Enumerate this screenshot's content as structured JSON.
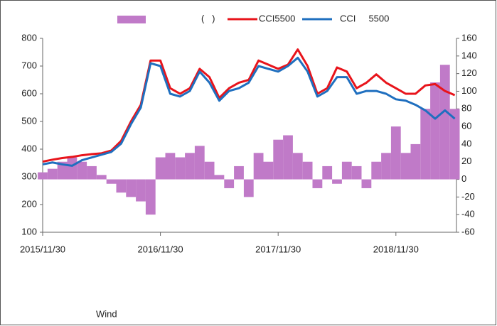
{
  "chart_data": {
    "type": "bar-line",
    "categories": [
      "2015/11/30",
      null,
      null,
      null,
      null,
      null,
      null,
      null,
      null,
      null,
      null,
      null,
      "2016/11/30",
      null,
      null,
      null,
      null,
      null,
      null,
      null,
      null,
      null,
      null,
      null,
      "2017/11/30",
      null,
      null,
      null,
      null,
      null,
      null,
      null,
      null,
      null,
      null,
      null,
      "2018/11/30",
      null,
      null,
      null,
      null,
      null,
      null
    ],
    "series": [
      {
        "name": "(   )",
        "color": "#c07ac8",
        "kind": "bar",
        "axis": "y2",
        "values": [
          8,
          12,
          20,
          25,
          20,
          15,
          5,
          -5,
          -15,
          -20,
          -25,
          -40,
          25,
          30,
          25,
          30,
          38,
          20,
          5,
          -10,
          15,
          -20,
          30,
          20,
          45,
          50,
          30,
          20,
          -10,
          15,
          -5,
          20,
          15,
          -10,
          20,
          30,
          60,
          30,
          40,
          80,
          110,
          130,
          80
        ]
      },
      {
        "name": "CCI5500",
        "color": "#e8141b",
        "kind": "line",
        "values": [
          355,
          362,
          368,
          372,
          378,
          382,
          385,
          395,
          430,
          500,
          560,
          720,
          720,
          620,
          600,
          620,
          690,
          660,
          585,
          620,
          640,
          650,
          720,
          705,
          690,
          705,
          760,
          700,
          600,
          620,
          695,
          680,
          620,
          640,
          670,
          640,
          620,
          600,
          600,
          630,
          635,
          610,
          595
        ]
      },
      {
        "name": "CCI     5500",
        "color": "#1f6fbf",
        "kind": "line",
        "values": [
          345,
          352,
          345,
          340,
          360,
          370,
          380,
          390,
          420,
          490,
          550,
          710,
          700,
          600,
          590,
          610,
          680,
          640,
          575,
          610,
          620,
          640,
          700,
          690,
          680,
          700,
          730,
          680,
          590,
          610,
          660,
          660,
          600,
          610,
          610,
          600,
          580,
          575,
          560,
          540,
          510,
          540,
          510
        ]
      }
    ],
    "ylim": [
      100,
      800
    ],
    "yticks": [
      100,
      200,
      300,
      400,
      500,
      600,
      700,
      800
    ],
    "y2lim": [
      -60,
      160
    ],
    "y2ticks": [
      -60,
      -40,
      -20,
      0,
      20,
      40,
      60,
      80,
      100,
      120,
      140,
      160
    ],
    "source": "Wind"
  }
}
